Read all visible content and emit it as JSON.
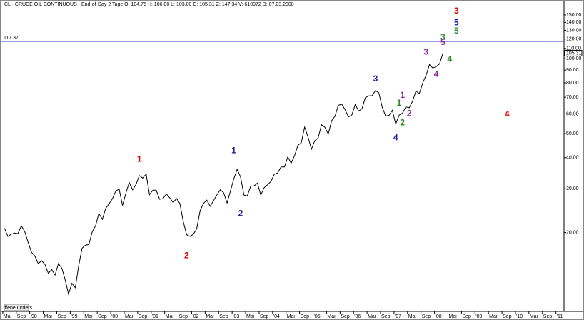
{
  "chart_data": {
    "type": "line",
    "title": "CL - CRUDE OIL CONTINUOUS - End-of-Day 2 Tage  O: 104.75  H: 106.00  L: 103.00  C: 105.31  Z: 147.34  V: 610972  D: 07.03.2008",
    "log_scale": true,
    "grid": false,
    "xlim": [
      1997.3,
      2011.2
    ],
    "ylim": [
      9.7,
      170
    ],
    "yticks": [
      {
        "value": 20,
        "label": "20.00"
      },
      {
        "value": 30,
        "label": "30.00"
      },
      {
        "value": 40,
        "label": "40.00"
      },
      {
        "value": 50,
        "label": "50.00"
      },
      {
        "value": 60,
        "label": "60.00"
      },
      {
        "value": 70,
        "label": "70.00"
      },
      {
        "value": 80,
        "label": "80.00"
      },
      {
        "value": 90,
        "label": "90.00"
      },
      {
        "value": 100,
        "label": "100.00"
      },
      {
        "value": 110,
        "label": "110.00"
      },
      {
        "value": 120,
        "label": "120.00"
      },
      {
        "value": 130,
        "label": "130.00"
      },
      {
        "value": 140,
        "label": "140.00"
      },
      {
        "value": 150,
        "label": "150.00"
      }
    ],
    "xticks": [
      {
        "value": 1997.333,
        "label": "Mai"
      },
      {
        "value": 1997.667,
        "label": "Sep"
      },
      {
        "value": 1998,
        "label": "'98"
      },
      {
        "value": 1998.333,
        "label": "Mai"
      },
      {
        "value": 1998.667,
        "label": "Sep"
      },
      {
        "value": 1999,
        "label": "'99"
      },
      {
        "value": 1999.333,
        "label": "Mai"
      },
      {
        "value": 1999.667,
        "label": "Sep"
      },
      {
        "value": 2000,
        "label": "'00"
      },
      {
        "value": 2000.333,
        "label": "Mai"
      },
      {
        "value": 2000.667,
        "label": "Sep"
      },
      {
        "value": 2001,
        "label": "'01"
      },
      {
        "value": 2001.333,
        "label": "Mai"
      },
      {
        "value": 2001.667,
        "label": "Sep"
      },
      {
        "value": 2002,
        "label": "'02"
      },
      {
        "value": 2002.333,
        "label": "Mai"
      },
      {
        "value": 2002.667,
        "label": "Sep"
      },
      {
        "value": 2003,
        "label": "'03"
      },
      {
        "value": 2003.333,
        "label": "Mai"
      },
      {
        "value": 2003.667,
        "label": "Sep"
      },
      {
        "value": 2004,
        "label": "'04"
      },
      {
        "value": 2004.333,
        "label": "Mai"
      },
      {
        "value": 2004.667,
        "label": "Sep"
      },
      {
        "value": 2005,
        "label": "'05"
      },
      {
        "value": 2005.333,
        "label": "Mai"
      },
      {
        "value": 2005.667,
        "label": "Sep"
      },
      {
        "value": 2006,
        "label": "'06"
      },
      {
        "value": 2006.333,
        "label": "Mai"
      },
      {
        "value": 2006.667,
        "label": "Sep"
      },
      {
        "value": 2007,
        "label": "'07"
      },
      {
        "value": 2007.333,
        "label": "Mai"
      },
      {
        "value": 2007.667,
        "label": "Sep"
      },
      {
        "value": 2008,
        "label": "'08"
      },
      {
        "value": 2008.333,
        "label": "Mai"
      },
      {
        "value": 2008.667,
        "label": "Sep"
      },
      {
        "value": 2009,
        "label": "'09"
      },
      {
        "value": 2009.333,
        "label": "Mai"
      },
      {
        "value": 2009.667,
        "label": "Sep"
      },
      {
        "value": 2010,
        "label": "'10"
      },
      {
        "value": 2010.333,
        "label": "Mai"
      },
      {
        "value": 2010.667,
        "label": "Sep"
      },
      {
        "value": 2011,
        "label": "'11"
      }
    ],
    "x": [
      "1997-05",
      "1997-06",
      "1997-07",
      "1997-08",
      "1997-09",
      "1997-10",
      "1997-11",
      "1997-12",
      "1998-01",
      "1998-02",
      "1998-03",
      "1998-04",
      "1998-05",
      "1998-06",
      "1998-07",
      "1998-08",
      "1998-09",
      "1998-10",
      "1998-11",
      "1998-12",
      "1999-01",
      "1999-02",
      "1999-03",
      "1999-04",
      "1999-05",
      "1999-06",
      "1999-07",
      "1999-08",
      "1999-09",
      "1999-10",
      "1999-11",
      "1999-12",
      "2000-01",
      "2000-02",
      "2000-03",
      "2000-04",
      "2000-05",
      "2000-06",
      "2000-07",
      "2000-08",
      "2000-09",
      "2000-10",
      "2000-11",
      "2000-12",
      "2001-01",
      "2001-02",
      "2001-03",
      "2001-04",
      "2001-05",
      "2001-06",
      "2001-07",
      "2001-08",
      "2001-09",
      "2001-10",
      "2001-11",
      "2001-12",
      "2002-01",
      "2002-02",
      "2002-03",
      "2002-04",
      "2002-05",
      "2002-06",
      "2002-07",
      "2002-08",
      "2002-09",
      "2002-10",
      "2002-11",
      "2002-12",
      "2003-01",
      "2003-02",
      "2003-03",
      "2003-04",
      "2003-05",
      "2003-06",
      "2003-07",
      "2003-08",
      "2003-09",
      "2003-10",
      "2003-11",
      "2003-12",
      "2004-01",
      "2004-02",
      "2004-03",
      "2004-04",
      "2004-05",
      "2004-06",
      "2004-07",
      "2004-08",
      "2004-09",
      "2004-10",
      "2004-11",
      "2004-12",
      "2005-01",
      "2005-02",
      "2005-03",
      "2005-04",
      "2005-05",
      "2005-06",
      "2005-07",
      "2005-08",
      "2005-09",
      "2005-10",
      "2005-11",
      "2005-12",
      "2006-01",
      "2006-02",
      "2006-03",
      "2006-04",
      "2006-05",
      "2006-06",
      "2006-07",
      "2006-08",
      "2006-09",
      "2006-10",
      "2006-11",
      "2006-12",
      "2007-01",
      "2007-02",
      "2007-03",
      "2007-04",
      "2007-05",
      "2007-06",
      "2007-07",
      "2007-08",
      "2007-09",
      "2007-10",
      "2007-11",
      "2007-12",
      "2008-01",
      "2008-02",
      "2008-03"
    ],
    "series": [
      {
        "name": "CL",
        "color": "#000000",
        "values": [
          20.8,
          19.3,
          19.7,
          19.9,
          19.8,
          21.3,
          20.2,
          18.3,
          16.7,
          16.1,
          15.0,
          15.4,
          14.9,
          13.7,
          14.2,
          13.5,
          15.0,
          14.4,
          12.9,
          11.3,
          12.5,
          12.0,
          14.7,
          17.3,
          17.8,
          17.9,
          20.1,
          21.3,
          23.9,
          22.6,
          25.0,
          26.1,
          27.3,
          29.4,
          29.9,
          25.7,
          28.8,
          31.8,
          29.7,
          31.2,
          33.9,
          33.1,
          34.4,
          28.4,
          29.6,
          29.6,
          27.2,
          27.4,
          28.6,
          27.6,
          26.4,
          27.4,
          26.2,
          22.2,
          19.6,
          19.3,
          19.7,
          20.7,
          24.5,
          26.2,
          27.0,
          25.5,
          26.9,
          28.4,
          29.7,
          28.9,
          26.3,
          29.4,
          32.9,
          35.9,
          33.5,
          28.3,
          28.1,
          30.7,
          30.8,
          31.6,
          28.3,
          30.3,
          31.1,
          32.1,
          34.3,
          34.7,
          36.7,
          36.7,
          40.3,
          38.0,
          40.7,
          44.9,
          45.9,
          53.1,
          48.5,
          43.3,
          46.8,
          48.0,
          54.3,
          53.0,
          49.8,
          56.3,
          58.7,
          65.0,
          65.6,
          62.4,
          58.3,
          59.4,
          65.5,
          61.6,
          62.9,
          69.7,
          70.9,
          71.0,
          74.4,
          73.0,
          63.8,
          58.9,
          59.1,
          62.0,
          54.6,
          59.3,
          60.4,
          64.0,
          63.5,
          67.5,
          74.1,
          72.4,
          79.9,
          85.8,
          94.8,
          91.7,
          93.0,
          95.4,
          105.31
        ]
      }
    ],
    "reference_line": {
      "value": 117.37,
      "label": "117.37",
      "color": "#3333cc"
    },
    "current_price": {
      "value": 105.31,
      "label": "105.31"
    },
    "annotations": [
      {
        "text": "1",
        "x": "2000-09",
        "y": 39.3,
        "color": "#e00000"
      },
      {
        "text": "2",
        "x": "2001-11",
        "y": 16.1,
        "color": "#e00000"
      },
      {
        "text": "3",
        "x": "2008-07",
        "y": 155,
        "color": "#e00000"
      },
      {
        "text": "4",
        "x": "2009-10",
        "y": 59.7,
        "color": "#e00000"
      },
      {
        "text": "1",
        "x": "2003-01",
        "y": 42.6,
        "color": "#1a1aa0"
      },
      {
        "text": "2",
        "x": "2003-03",
        "y": 23.8,
        "color": "#1a1aa0"
      },
      {
        "text": "3",
        "x": "2006-07",
        "y": 82.8,
        "color": "#1a1aa0"
      },
      {
        "text": "4",
        "x": "2007-01",
        "y": 48,
        "color": "#1a1aa0"
      },
      {
        "text": "5",
        "x": "2008-07",
        "y": 139,
        "color": "#1a1aa0"
      },
      {
        "text": "1",
        "x": "2007-02",
        "y": 66,
        "color": "#2a8a2a"
      },
      {
        "text": "2",
        "x": "2007-03",
        "y": 55.2,
        "color": "#2a8a2a"
      },
      {
        "text": "3",
        "x": "2008-03",
        "y": 122,
        "color": "#2a8a2a"
      },
      {
        "text": "4",
        "x": "2008-05",
        "y": 99.3,
        "color": "#2a8a2a"
      },
      {
        "text": "5",
        "x": "2008-07",
        "y": 129,
        "color": "#2a8a2a"
      },
      {
        "text": "1",
        "x": "2007-03",
        "y": 71.1,
        "color": "#8a2a9a"
      },
      {
        "text": "2",
        "x": "2007-05",
        "y": 60.1,
        "color": "#8a2a9a"
      },
      {
        "text": "3",
        "x": "2007-10",
        "y": 106,
        "color": "#8a2a9a"
      },
      {
        "text": "4",
        "x": "2008-01",
        "y": 86.3,
        "color": "#8a2a9a"
      },
      {
        "text": "5",
        "x": "2008-03",
        "y": 116,
        "color": "#8a2a9a"
      }
    ]
  },
  "order_button": "Offene Orders"
}
